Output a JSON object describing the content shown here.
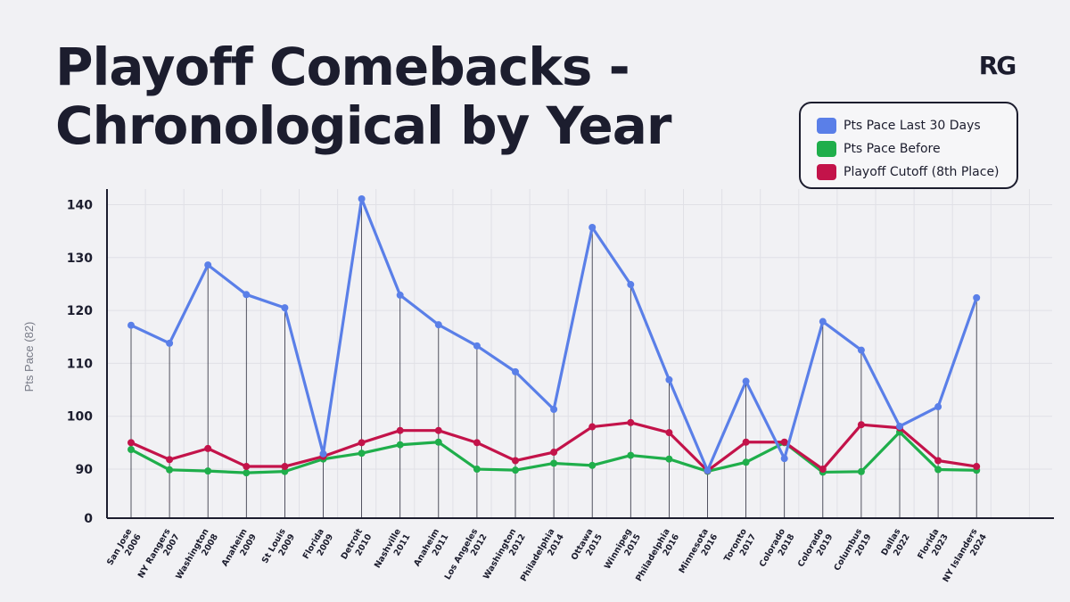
{
  "header": {
    "title_line1": "Playoff Comebacks -",
    "title_line2": "Chronological by Year",
    "logo_text": "RG"
  },
  "legend": [
    {
      "label": "Pts Pace Last 30 Days",
      "color": "#5a7fe8"
    },
    {
      "label": "Pts Pace Before",
      "color": "#1fae4b"
    },
    {
      "label": "Playoff Cutoff (8th Place)",
      "color": "#c3134a"
    }
  ],
  "chart_data": {
    "type": "line",
    "ylabel": "Pts Pace (82)",
    "yticks": [
      0,
      90,
      100,
      110,
      120,
      130,
      140
    ],
    "axis_note": "y axis is broken between 0 and 90",
    "grid": true,
    "legend_position": "top-right",
    "categories": [
      {
        "team": "San Jose",
        "year": "2006"
      },
      {
        "team": "NY Rangers",
        "year": "2007"
      },
      {
        "team": "Washington",
        "year": "2008"
      },
      {
        "team": "Anaheim",
        "year": "2009"
      },
      {
        "team": "St Louis",
        "year": "2009"
      },
      {
        "team": "Florida",
        "year": "2009"
      },
      {
        "team": "Detroit",
        "year": "2010"
      },
      {
        "team": "Nashville",
        "year": "2011"
      },
      {
        "team": "Anaheim",
        "year": "2011"
      },
      {
        "team": "Los Angeles",
        "year": "2012"
      },
      {
        "team": "Washington",
        "year": "2012"
      },
      {
        "team": "Philadelphia",
        "year": "2014"
      },
      {
        "team": "Ottawa",
        "year": "2015"
      },
      {
        "team": "Winnipeg",
        "year": "2015"
      },
      {
        "team": "Philadelphia",
        "year": "2016"
      },
      {
        "team": "Minnesota",
        "year": "2016"
      },
      {
        "team": "Toronto",
        "year": "2017"
      },
      {
        "team": "Colorado",
        "year": "2018"
      },
      {
        "team": "Colorado",
        "year": "2019"
      },
      {
        "team": "Columbus",
        "year": "2019"
      },
      {
        "team": "Dallas",
        "year": "2022"
      },
      {
        "team": "Florida",
        "year": "2023"
      },
      {
        "team": "NY Islanders",
        "year": "2024"
      }
    ],
    "series": [
      {
        "name": "Pts Pace Last 30 Days",
        "color": "#5a7fe8",
        "values": [
          117.2,
          113.8,
          128.6,
          123.0,
          120.5,
          92.9,
          141.1,
          122.9,
          117.3,
          113.3,
          108.4,
          101.3,
          135.7,
          124.9,
          106.9,
          87.4,
          106.6,
          92.0,
          117.9,
          112.5,
          98.1,
          101.8,
          122.4
        ]
      },
      {
        "name": "Pts Pace Before",
        "color": "#1fae4b",
        "values": [
          93.7,
          88.7,
          86.5,
          83.2,
          85.7,
          91.9,
          93.0,
          94.6,
          95.1,
          89.9,
          88.1,
          91.1,
          90.7,
          92.6,
          91.9,
          86.0,
          91.3,
          95.0,
          84.4,
          85.4,
          97.0,
          89.2,
          87.9
        ]
      },
      {
        "name": "Playoff Cutoff (8th Place)",
        "color": "#c3134a",
        "values": [
          95.0,
          91.8,
          93.9,
          90.5,
          90.5,
          92.4,
          95.0,
          97.3,
          97.3,
          95.0,
          91.6,
          93.2,
          98.0,
          98.8,
          96.9,
          87.0,
          95.1,
          95.1,
          89.9,
          98.4,
          97.8,
          91.6,
          90.5
        ]
      }
    ]
  }
}
